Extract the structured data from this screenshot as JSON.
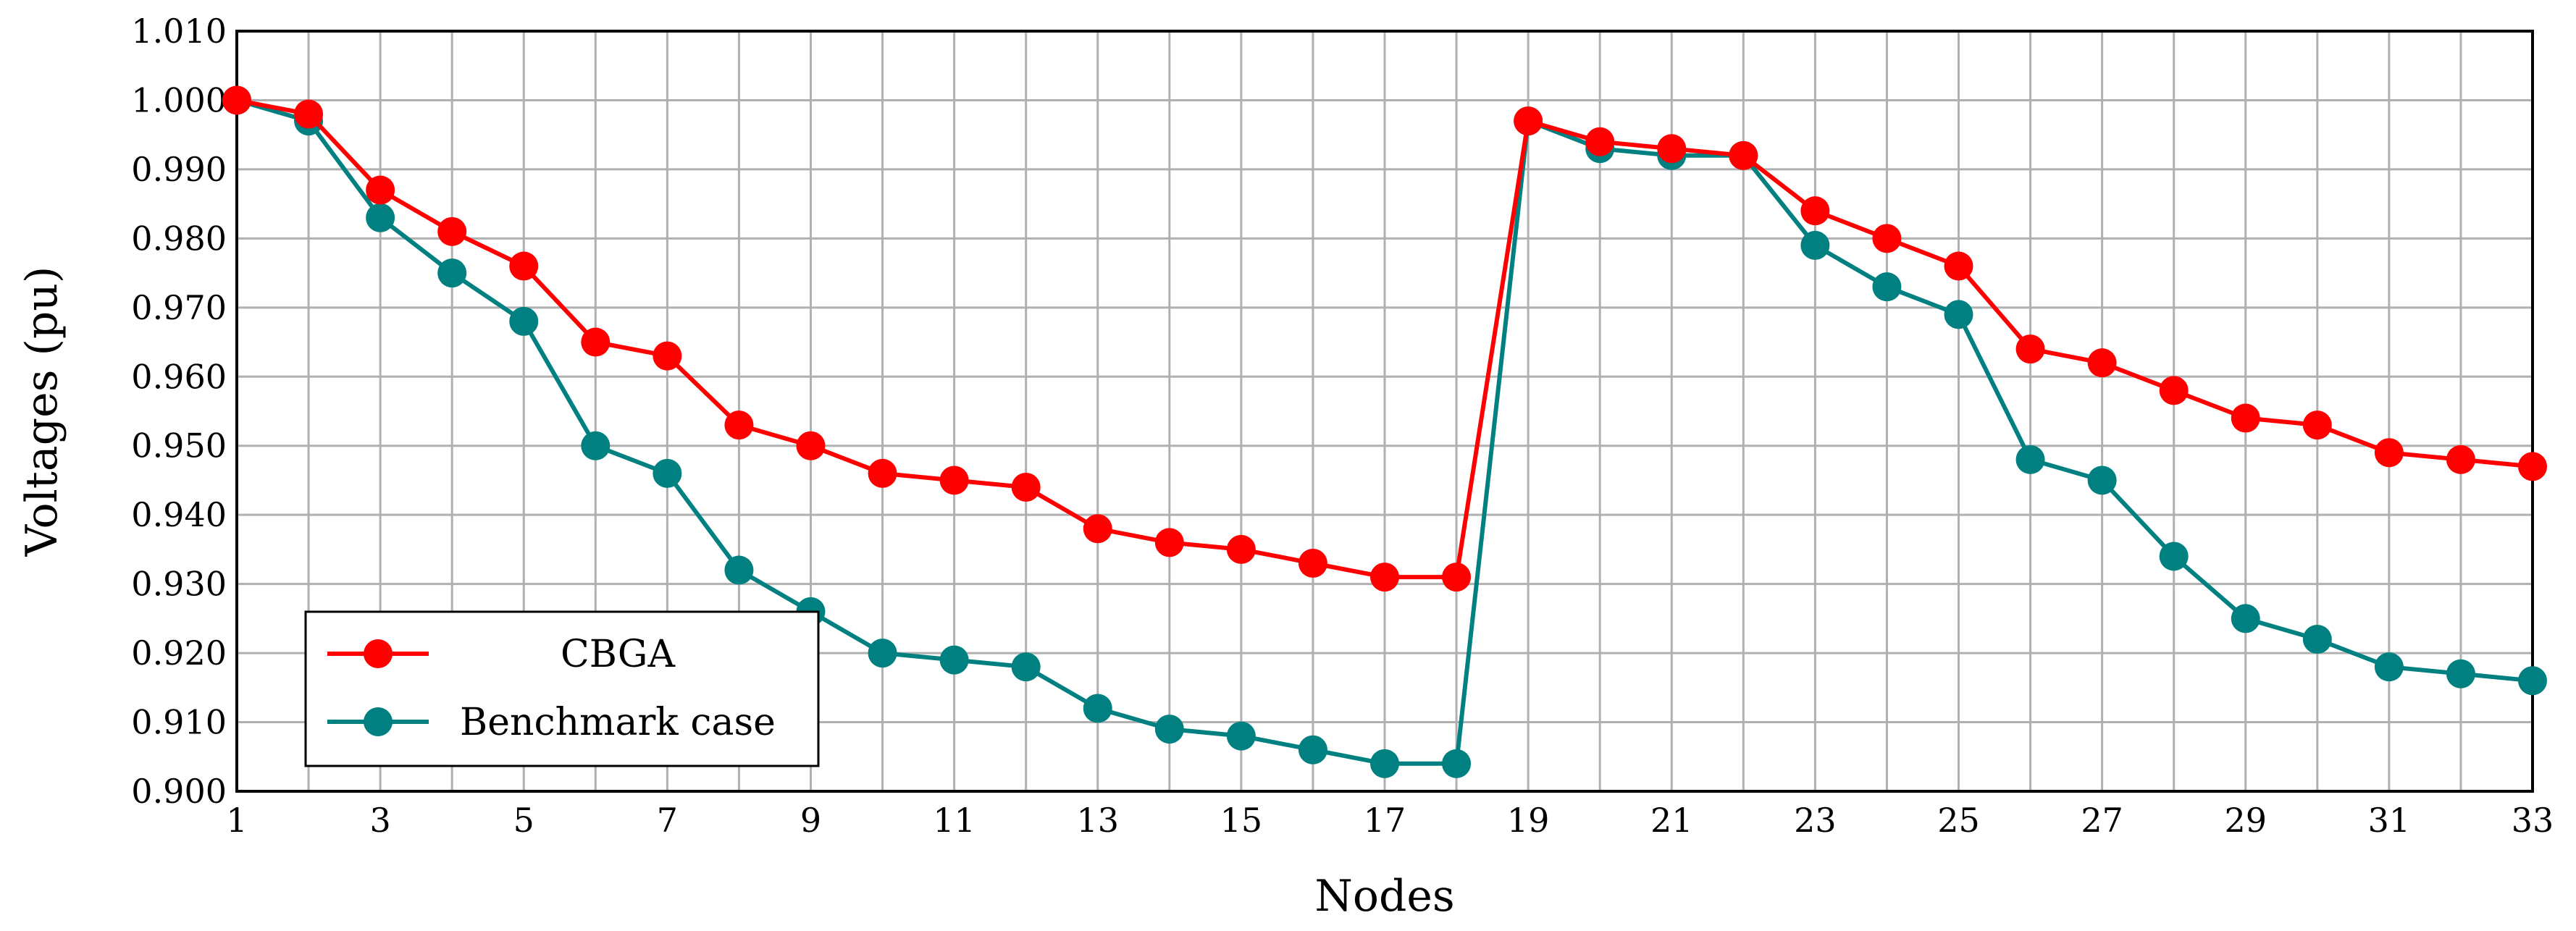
{
  "chart_data": {
    "type": "line",
    "title": "",
    "xlabel": "Nodes",
    "ylabel": "Voltages (pu)",
    "x": [
      1,
      2,
      3,
      4,
      5,
      6,
      7,
      8,
      9,
      10,
      11,
      12,
      13,
      14,
      15,
      16,
      17,
      18,
      19,
      20,
      21,
      22,
      23,
      24,
      25,
      26,
      27,
      28,
      29,
      30,
      31,
      32,
      33
    ],
    "xlim": [
      1,
      33
    ],
    "ylim": [
      0.9,
      1.01
    ],
    "xticks": [
      1,
      3,
      5,
      7,
      9,
      11,
      13,
      15,
      17,
      19,
      21,
      23,
      25,
      27,
      29,
      31,
      33
    ],
    "yticks": [
      "0.900",
      "0.910",
      "0.920",
      "0.930",
      "0.940",
      "0.950",
      "0.960",
      "0.970",
      "0.980",
      "0.990",
      "1.000",
      "1.010"
    ],
    "grid": true,
    "legend_position": "bottom-left",
    "series": [
      {
        "name": "CBGA",
        "color": "#ff0000",
        "values": [
          1.0,
          0.998,
          0.987,
          0.981,
          0.976,
          0.965,
          0.963,
          0.953,
          0.95,
          0.946,
          0.945,
          0.944,
          0.938,
          0.936,
          0.935,
          0.933,
          0.931,
          0.931,
          0.997,
          0.994,
          0.993,
          0.992,
          0.984,
          0.98,
          0.976,
          0.964,
          0.962,
          0.958,
          0.954,
          0.953,
          0.949,
          0.948,
          0.947
        ]
      },
      {
        "name": "Benchmark case",
        "color": "#008080",
        "values": [
          1.0,
          0.997,
          0.983,
          0.975,
          0.968,
          0.95,
          0.946,
          0.932,
          0.926,
          0.92,
          0.919,
          0.918,
          0.912,
          0.909,
          0.908,
          0.906,
          0.904,
          0.904,
          0.997,
          0.993,
          0.992,
          0.992,
          0.979,
          0.973,
          0.969,
          0.948,
          0.945,
          0.934,
          0.925,
          0.922,
          0.918,
          0.917,
          0.916
        ]
      }
    ]
  }
}
